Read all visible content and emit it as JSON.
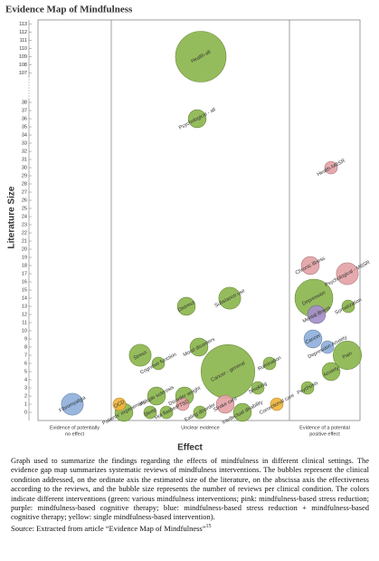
{
  "chart_data": {
    "type": "bubble",
    "title": "Evidence Map of Mindfulness",
    "xlabel": "Effect",
    "ylabel": "Literature Size",
    "ylim": [
      -1,
      113.5
    ],
    "yticks": [
      0,
      1,
      2,
      3,
      4,
      5,
      6,
      7,
      8,
      9,
      10,
      11,
      12,
      13,
      14,
      15,
      16,
      17,
      18,
      19,
      20,
      21,
      22,
      23,
      24,
      25,
      26,
      27,
      28,
      29,
      30,
      31,
      32,
      33,
      34,
      35,
      36,
      37,
      38,
      107,
      108,
      109,
      110,
      111,
      112,
      113
    ],
    "columns": [
      {
        "label": [
          "Evidence of potentially",
          "no effect"
        ],
        "bubbles": [
          {
            "label": "Fibromyalgia",
            "y": 1,
            "size": 3,
            "color": "#8fb0db"
          }
        ]
      },
      {
        "label": [
          "Unclear evidence"
        ],
        "bubbles": [
          {
            "label": "Health-all",
            "y": 109,
            "size": 16,
            "color": "#8cb64e"
          },
          {
            "label": "Psychological - all",
            "y": 36,
            "size": 2,
            "color": "#8cb64e"
          },
          {
            "label": "Distress",
            "y": 13,
            "size": 2,
            "color": "#8cb64e"
          },
          {
            "label": "Substance use",
            "y": 14,
            "size": 3,
            "color": "#8cb64e"
          },
          {
            "label": "Stress",
            "y": 7,
            "size": 3,
            "color": "#8cb64e"
          },
          {
            "label": "Mood disorders",
            "y": 8,
            "size": 2,
            "color": "#8cb64e"
          },
          {
            "label": "Cognitive function",
            "y": 6,
            "size": 1,
            "color": "#8cb64e"
          },
          {
            "label": "Cancer - general",
            "y": 5,
            "size": 18,
            "color": "#8cb64e"
          },
          {
            "label": "Rumination",
            "y": 6,
            "size": 1,
            "color": "#8cb64e"
          },
          {
            "label": "Smoking",
            "y": 3,
            "size": 1,
            "color": "#8cb64e"
          },
          {
            "label": "Patients' experiences",
            "y": 0,
            "size": 2,
            "color": "#8cb64e"
          },
          {
            "label": "OCD",
            "y": 1,
            "size": 1,
            "color": "#f0b53c"
          },
          {
            "label": "Multiple sclerosis",
            "y": 2,
            "size": 2,
            "color": "#8cb64e"
          },
          {
            "label": "Sleep",
            "y": 0,
            "size": 1,
            "color": "#8cb64e"
          },
          {
            "label": "Hot flashes",
            "y": 0,
            "size": 1,
            "color": "#8cb64e"
          },
          {
            "label": "Disorder weight",
            "y": 2,
            "size": 2,
            "color": "#8cb64e"
          },
          {
            "label": "PTSD",
            "y": 1,
            "size": 1,
            "color": "#e4a3a7"
          },
          {
            "label": "Eating disorder",
            "y": 0,
            "size": 1,
            "color": "#8cb64e"
          },
          {
            "label": "Stroke care",
            "y": 1,
            "size": 2,
            "color": "#e4a3a7"
          },
          {
            "label": "Intellectual disability",
            "y": 0,
            "size": 2,
            "color": "#8cb64e"
          },
          {
            "label": "Correctional care",
            "y": 1,
            "size": 1,
            "color": "#f0b53c"
          }
        ]
      },
      {
        "label": [
          "Evidence of a potential",
          "positive effect"
        ],
        "bubbles": [
          {
            "label": "Health-MBSR",
            "y": 30,
            "size": 1,
            "color": "#e4a3a7"
          },
          {
            "label": "Chronic illness",
            "y": 18,
            "size": 2,
            "color": "#e4a3a7"
          },
          {
            "label": "Psychological - MBSR",
            "y": 17,
            "size": 3,
            "color": "#e4a3a7"
          },
          {
            "label": "Depression",
            "y": 14,
            "size": 9,
            "color": "#8cb64e"
          },
          {
            "label": "Mental illness",
            "y": 12,
            "size": 2,
            "color": "#a58fc9"
          },
          {
            "label": "Somatization",
            "y": 13,
            "size": 1,
            "color": "#8cb64e"
          },
          {
            "label": "Cancer",
            "y": 9,
            "size": 2,
            "color": "#8fb0db"
          },
          {
            "label": "Depression Anxiety",
            "y": 8,
            "size": 1,
            "color": "#8fb0db"
          },
          {
            "label": "Pain",
            "y": 7,
            "size": 5,
            "color": "#8cb64e"
          },
          {
            "label": "Anxiety",
            "y": 5,
            "size": 2,
            "color": "#8cb64e"
          },
          {
            "label": "Psychosis",
            "y": 3,
            "size": 1,
            "color": "#8cb64e"
          }
        ]
      }
    ]
  },
  "caption": {
    "text": "Graph used to summarize the findings regarding the effects of mindfulness in different clinical settings. The evidence gap map summarizes systematic reviews of mindfulness interventions. The bubbles represent the clinical condition addressed, on the ordinate axis the estimated size of the literature, on the abscissa axis the effectiveness according to the reviews, and the bubble size represents the number of reviews per clinical condition. The colors indicate different interventions (green: various mindfulness interventions; pink: mindfulness-based stress reduction; purple: mindfulness-based cognitive therapy; blue: mindfulness-based stress reduction + mindfulness-based cognitive therapy; yellow: single mindfulness-based intervention).",
    "source": "Source: Extracted from article “Evidence Map of Mindfulness”",
    "source_ref": "15"
  }
}
